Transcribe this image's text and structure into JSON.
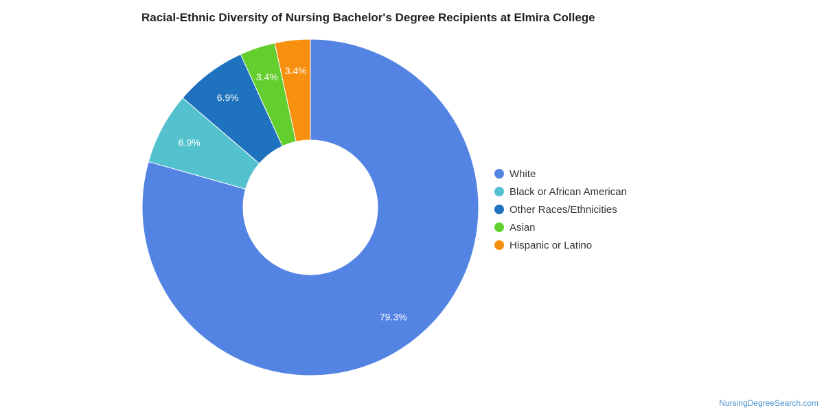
{
  "chart_data": {
    "type": "pie",
    "title": "Racial-Ethnic Diversity of Nursing Bachelor's Degree Recipients at Elmira College",
    "donut": true,
    "legend_position": "right",
    "categories": [
      "White",
      "Black or African American",
      "Other Races/Ethnicities",
      "Asian",
      "Hispanic or Latino"
    ],
    "values": [
      79.3,
      6.9,
      6.9,
      3.4,
      3.4
    ],
    "labels": [
      "79.3%",
      "6.9%",
      "6.9%",
      "3.4%",
      "3.4%"
    ],
    "colors": [
      "#5484e3",
      "#53c2ce",
      "#1f72bd",
      "#62cf2e",
      "#f7900e"
    ]
  },
  "watermark": "NursingDegreeSearch.com"
}
